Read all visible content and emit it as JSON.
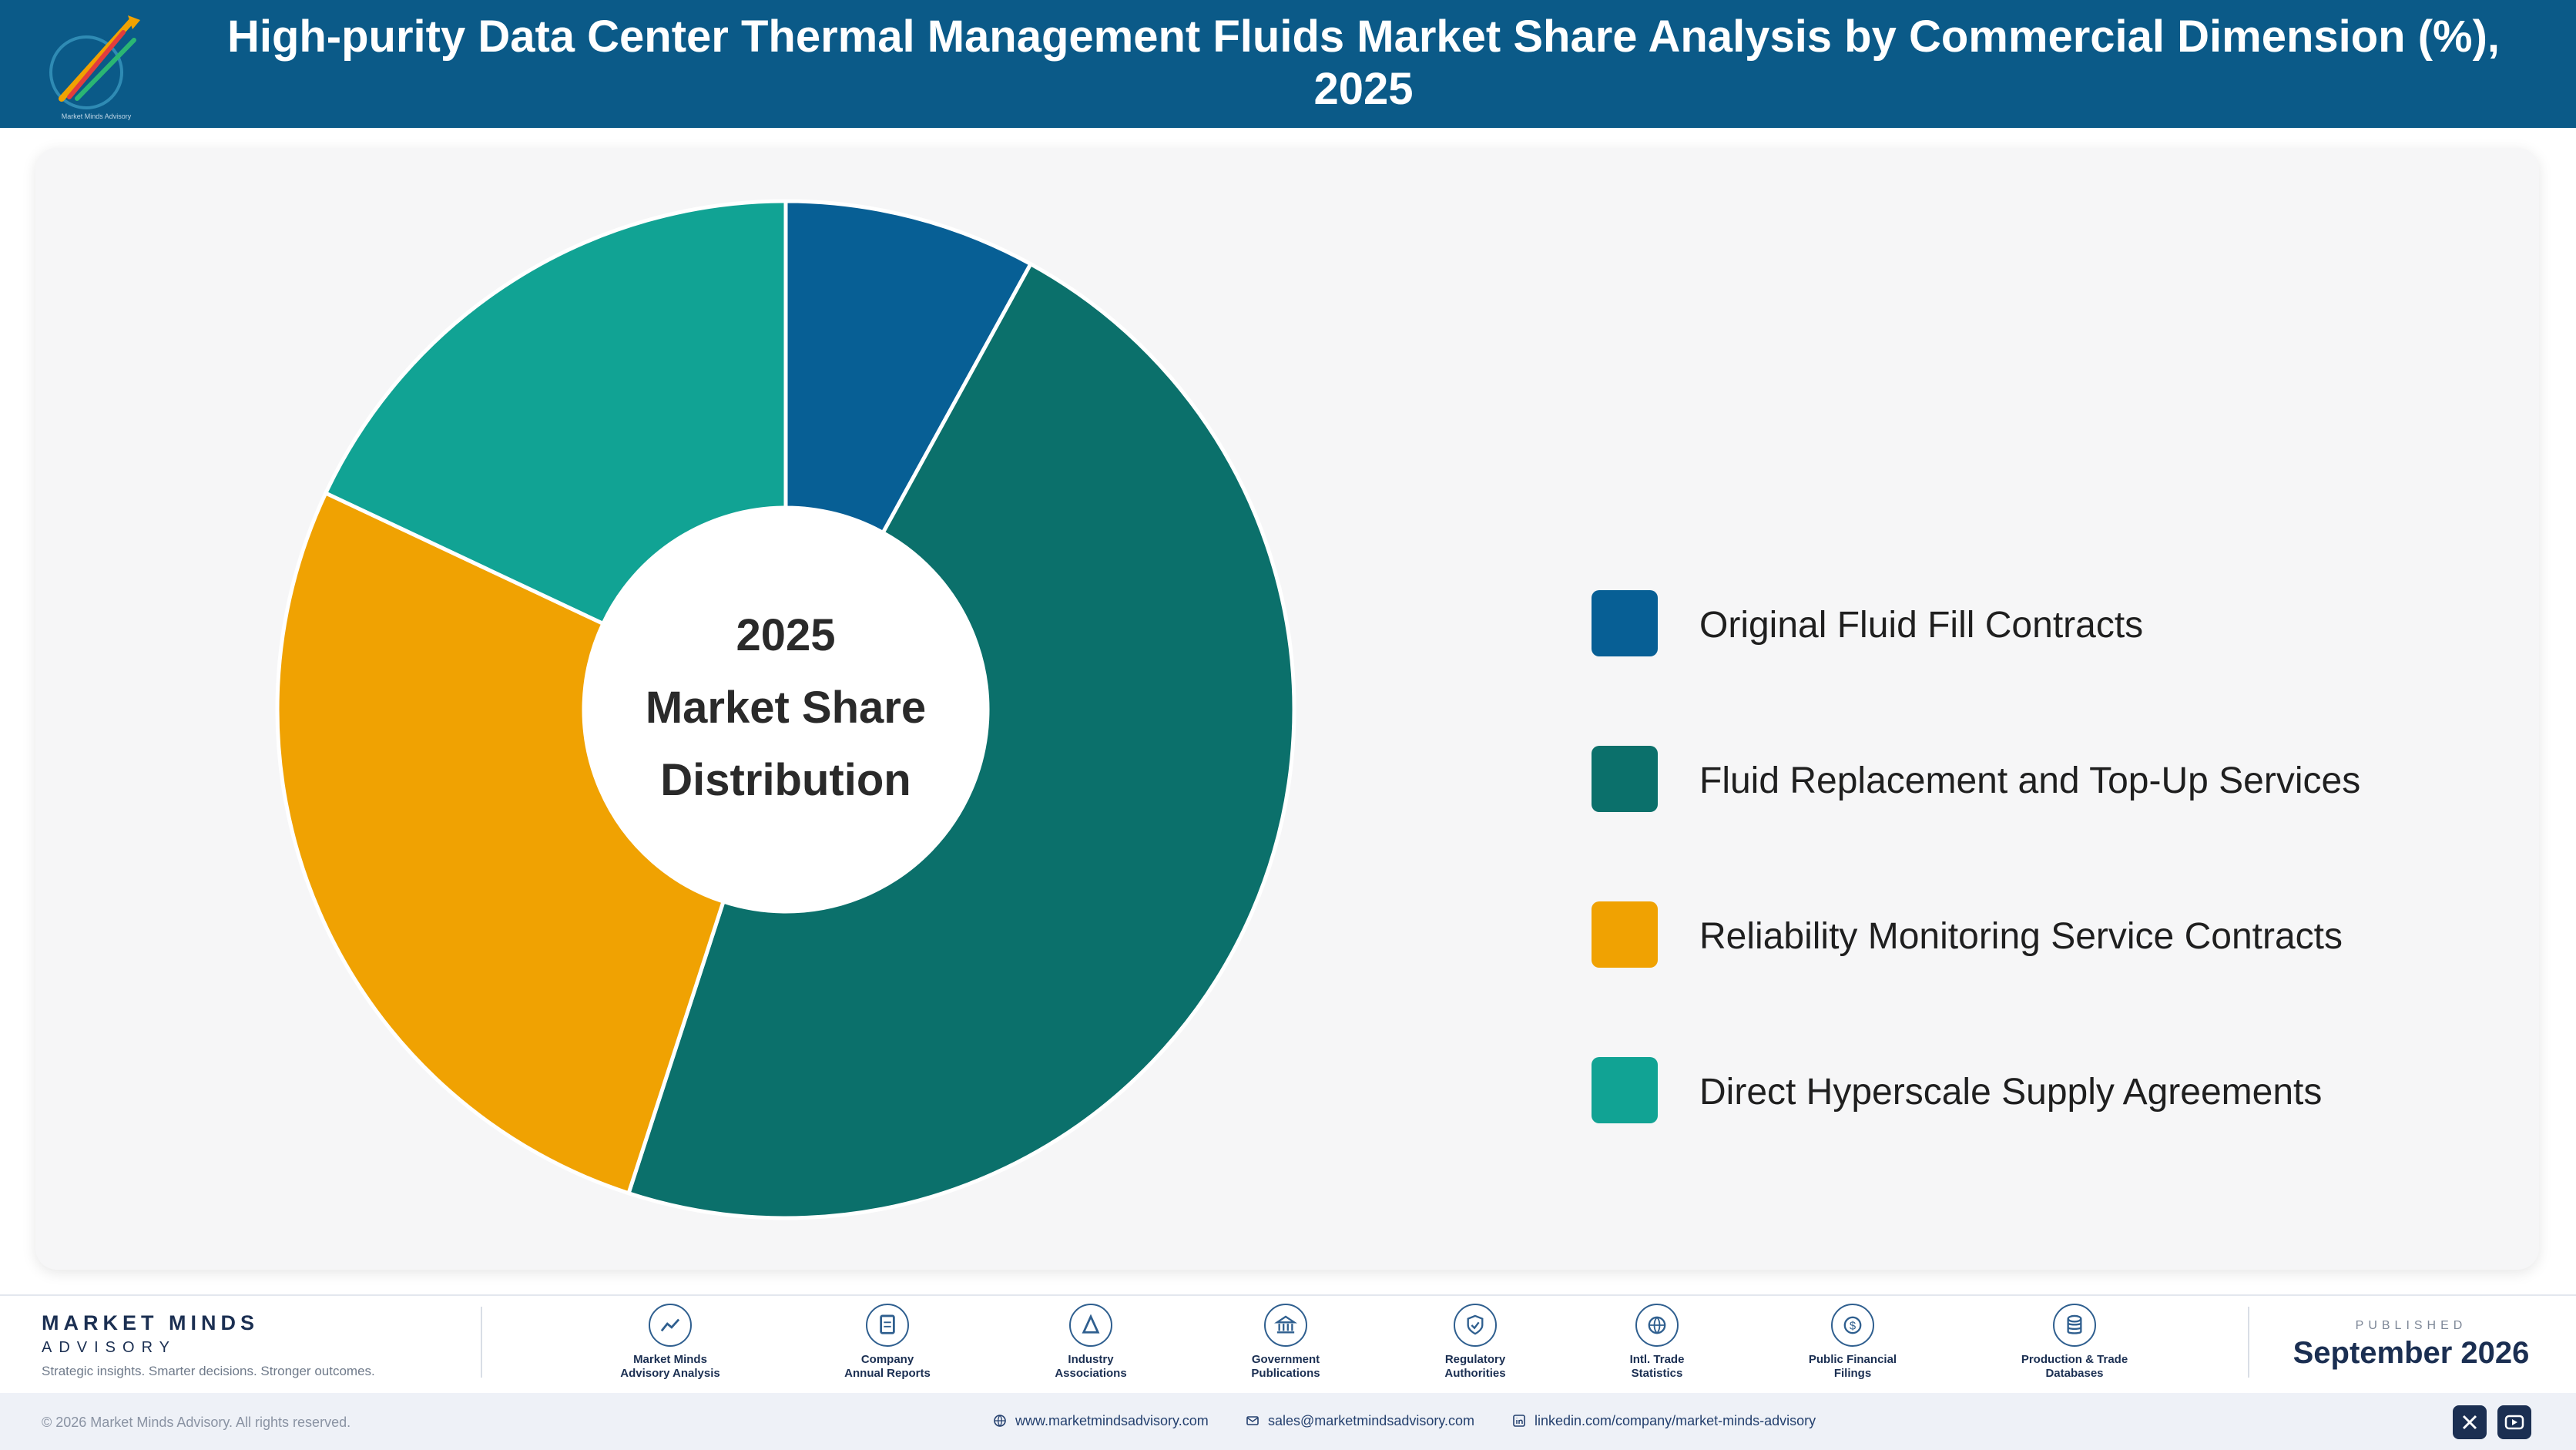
{
  "header": {
    "title": "High-purity Data Center Thermal Management Fluids Market Share Analysis by Commercial Dimension (%), 2025",
    "logo_icon": "market-minds-logo"
  },
  "chart_data": {
    "type": "pie",
    "donut": true,
    "title": "High-purity Data Center Thermal Management Fluids Market Share Analysis by Commercial Dimension (%), 2025",
    "center_label": [
      "2025",
      "Market Share",
      "Distribution"
    ],
    "categories": [
      "Original Fluid Fill Contracts",
      "Fluid Replacement and Top-Up Services",
      "Reliability Monitoring Service Contracts",
      "Direct Hyperscale Supply Agreements"
    ],
    "values": [
      8,
      47,
      27,
      18
    ],
    "colors": [
      "#075f95",
      "#0b706b",
      "#f0a202",
      "#11a394"
    ],
    "legend_position": "right"
  },
  "footer": {
    "brand_name": "MARKET MINDS",
    "brand_sub": "ADVISORY",
    "tagline": "Strategic insights. Smarter decisions. Stronger outcomes.",
    "sources": [
      {
        "label": "Market Minds\nAdvisory Analysis",
        "icon": "trend-chart-icon"
      },
      {
        "label": "Company\nAnnual Reports",
        "icon": "document-icon"
      },
      {
        "label": "Industry\nAssociations",
        "icon": "network-icon"
      },
      {
        "label": "Government\nPublications",
        "icon": "government-building-icon"
      },
      {
        "label": "Regulatory\nAuthorities",
        "icon": "shield-check-icon"
      },
      {
        "label": "Intl. Trade\nStatistics",
        "icon": "globe-icon"
      },
      {
        "label": "Public Financial\nFilings",
        "icon": "dollar-icon"
      },
      {
        "label": "Production & Trade\nDatabases",
        "icon": "database-icon"
      }
    ],
    "published_label": "PUBLISHED",
    "published_date": "September 2026",
    "copyright": "© 2026 Market Minds Advisory. All rights reserved.",
    "website": "www.marketmindsadvisory.com",
    "email": "sales@marketmindsadvisory.com",
    "linkedin": "linkedin.com/company/market-minds-advisory"
  }
}
